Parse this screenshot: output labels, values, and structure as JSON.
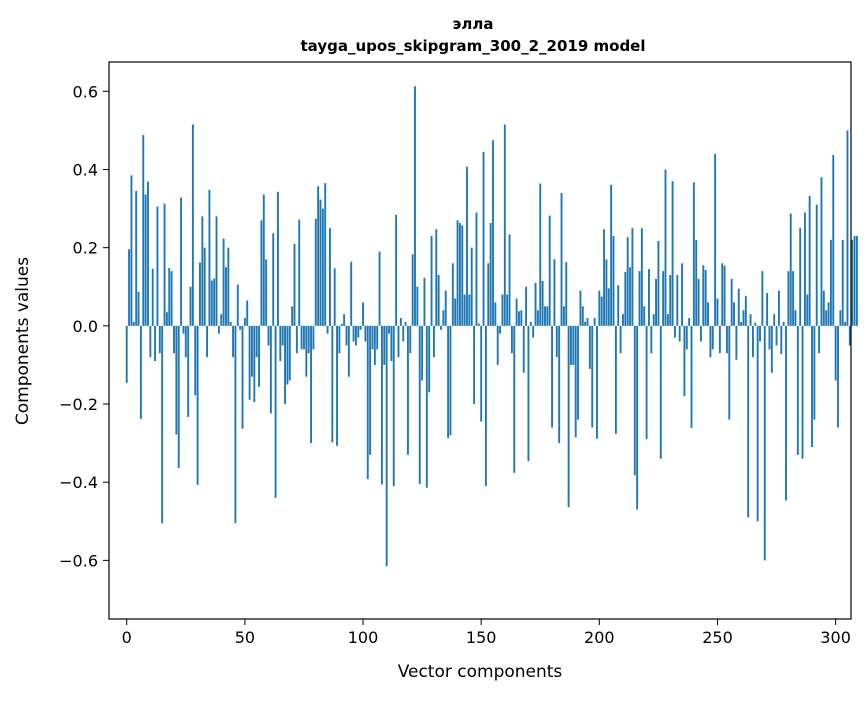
{
  "chart_data": {
    "type": "bar",
    "title_line1": "элла",
    "title_line2": "tayga_upos_skipgram_300_2_2019 model",
    "xlabel": "Vector components",
    "ylabel": "Components values",
    "xlim": [
      -7.5,
      306.5
    ],
    "ylim": [
      -0.75,
      0.675
    ],
    "xticks": [
      0,
      50,
      100,
      150,
      200,
      250,
      300
    ],
    "xtick_labels": [
      "0",
      "50",
      "100",
      "150",
      "200",
      "250",
      "300"
    ],
    "yticks": [
      -0.6,
      -0.4,
      -0.2,
      0.0,
      0.2,
      0.4,
      0.6
    ],
    "ytick_labels": [
      "−0.6",
      "−0.4",
      "−0.2",
      "0.0",
      "0.2",
      "0.4",
      "0.6"
    ],
    "bar_color": "#1f77b4",
    "values": [
      -0.146,
      0.196,
      0.385,
      0.01,
      0.345,
      0.087,
      -0.238,
      0.488,
      0.336,
      0.369,
      -0.08,
      0.146,
      -0.09,
      0.305,
      -0.07,
      -0.505,
      0.313,
      0.035,
      0.148,
      0.14,
      -0.07,
      -0.278,
      -0.364,
      0.328,
      -0.02,
      -0.08,
      -0.233,
      0.1,
      0.515,
      -0.178,
      -0.407,
      0.162,
      0.28,
      0.2,
      -0.08,
      0.348,
      0.116,
      0.121,
      0.28,
      -0.02,
      0.03,
      0.223,
      0.15,
      0.2,
      0.01,
      -0.08,
      -0.505,
      0.106,
      -0.01,
      -0.263,
      0.02,
      0.065,
      -0.189,
      -0.13,
      -0.195,
      -0.08,
      -0.156,
      0.27,
      0.336,
      0.17,
      -0.05,
      -0.224,
      0.237,
      -0.44,
      0.343,
      -0.09,
      -0.05,
      -0.2,
      -0.15,
      -0.14,
      0.05,
      0.21,
      -0.07,
      0.272,
      -0.06,
      -0.06,
      -0.13,
      -0.07,
      -0.3,
      -0.06,
      0.274,
      0.357,
      0.323,
      0.3,
      0.365,
      -0.02,
      0.25,
      -0.298,
      0.147,
      -0.307,
      -0.07,
      0.005,
      0.03,
      -0.05,
      -0.13,
      0.164,
      -0.04,
      -0.05,
      -0.03,
      -0.01,
      0.06,
      -0.04,
      -0.392,
      -0.33,
      -0.06,
      -0.1,
      -0.06,
      0.19,
      -0.406,
      -0.1,
      -0.615,
      -0.02,
      -0.09,
      -0.41,
      0.284,
      -0.08,
      0.02,
      -0.04,
      0.01,
      -0.33,
      -0.07,
      0.183,
      0.613,
      0.1,
      -0.405,
      -0.14,
      0.123,
      -0.414,
      -0.17,
      0.23,
      -0.08,
      0.247,
      0.13,
      -0.01,
      0.04,
      0.09,
      -0.287,
      -0.28,
      0.16,
      0.07,
      0.27,
      0.263,
      0.257,
      0.08,
      0.407,
      0.08,
      0.2,
      -0.2,
      0.29,
      0.006,
      -0.245,
      0.445,
      -0.41,
      0.16,
      0.263,
      0.475,
      0.06,
      -0.1,
      -0.02,
      0.08,
      0.515,
      0.08,
      0.234,
      -0.07,
      -0.376,
      0.07,
      0.037,
      0.04,
      -0.12,
      0.1,
      -0.346,
      0.01,
      -0.03,
      0.11,
      0.04,
      0.364,
      0.115,
      0.05,
      0.05,
      0.282,
      -0.26,
      0.17,
      -0.08,
      -0.3,
      0.34,
      0.05,
      0.163,
      -0.464,
      -0.1,
      -0.1,
      -0.285,
      -0.24,
      0.09,
      0.05,
      0.01,
      0.02,
      -0.11,
      -0.26,
      0.02,
      -0.289,
      0.09,
      0.075,
      0.247,
      0.17,
      0.096,
      0.361,
      0.23,
      -0.276,
      0.104,
      -0.07,
      0.03,
      0.138,
      0.227,
      0.15,
      0.25,
      -0.382,
      -0.47,
      0.14,
      0.25,
      0.05,
      -0.29,
      0.145,
      -0.07,
      0.03,
      0.12,
      0.217,
      -0.34,
      0.14,
      0.4,
      0.03,
      0.13,
      0.37,
      -0.03,
      0.13,
      -0.04,
      0.16,
      -0.18,
      -0.06,
      0.02,
      -0.261,
      0.367,
      0.22,
      0.12,
      -0.04,
      0.155,
      0.143,
      0.06,
      -0.08,
      -0.06,
      0.44,
      0.07,
      -0.07,
      0.16,
      0.154,
      -0.07,
      -0.24,
      0.12,
      0.06,
      -0.087,
      0.095,
      0.01,
      0.04,
      0.076,
      -0.49,
      0.03,
      -0.08,
      0.008,
      -0.5,
      -0.04,
      0.14,
      -0.6,
      0.084,
      -0.06,
      -0.12,
      0.03,
      -0.05,
      0.09,
      -0.072,
      0.01,
      -0.447,
      0.14,
      0.287,
      0.14,
      0.04,
      -0.33,
      0.25,
      -0.34,
      0.29,
      0.08,
      0.332,
      -0.31,
      -0.24,
      0.31,
      -0.07,
      0.38,
      0.09,
      0.04,
      0.06,
      0.22,
      0.437,
      -0.14,
      -0.26,
      0.04,
      0.22,
      0.01,
      0.5,
      -0.05,
      0.22,
      0.23,
      0.23
    ]
  }
}
